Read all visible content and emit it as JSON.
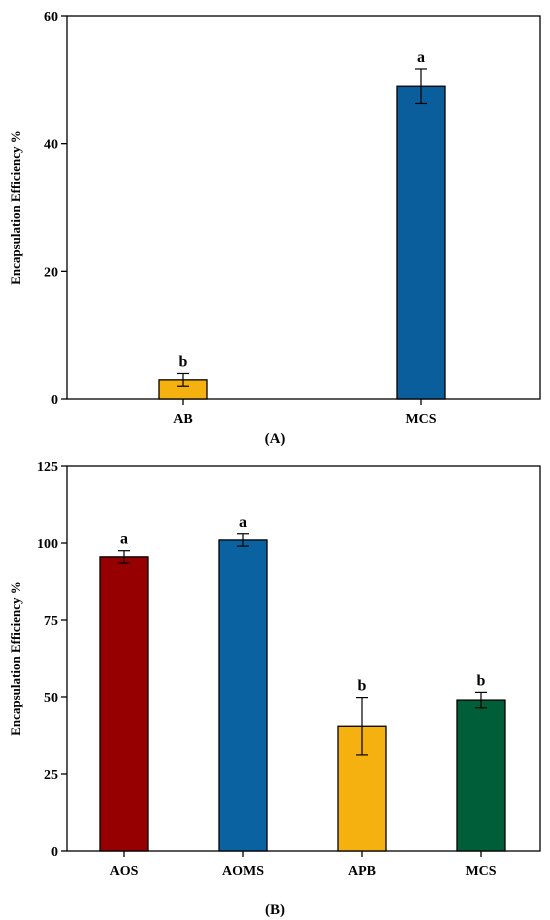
{
  "chart_data": [
    {
      "type": "bar",
      "panel_label": "(A)",
      "categories": [
        "AB",
        "MCS"
      ],
      "values": [
        3.0,
        49.0
      ],
      "errors": [
        1.0,
        2.7
      ],
      "significance": [
        "b",
        "a"
      ],
      "colors": [
        "#F5B10F",
        "#0A5E9C"
      ],
      "xlabel": "",
      "ylabel": "Encapsulation Efficiency %",
      "ylim": [
        0,
        60
      ],
      "yticks": [
        0,
        20,
        40,
        60
      ],
      "grid": false
    },
    {
      "type": "bar",
      "panel_label": "(B)",
      "categories": [
        "AOS",
        "AOMS",
        "APB",
        "MCS"
      ],
      "values": [
        95.5,
        101.0,
        40.5,
        49.0
      ],
      "errors": [
        2.0,
        2.0,
        9.3,
        2.5
      ],
      "significance": [
        "a",
        "a",
        "b",
        "b"
      ],
      "colors": [
        "#960000",
        "#0A63A0",
        "#F5B10F",
        "#005E38"
      ],
      "xlabel": "",
      "ylabel": "Encapsulation Efficiency %",
      "ylim": [
        0,
        125
      ],
      "yticks": [
        0,
        25,
        50,
        75,
        100,
        125
      ],
      "grid": false
    }
  ]
}
